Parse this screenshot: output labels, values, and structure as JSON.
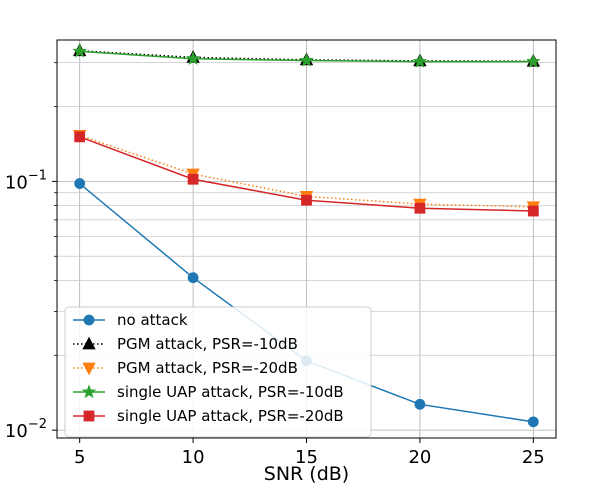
{
  "chart_data": {
    "type": "line",
    "title": "",
    "xlabel": "SNR (dB)",
    "ylabel": "",
    "x": [
      5,
      10,
      15,
      20,
      25
    ],
    "xlim": [
      4,
      26
    ],
    "ylim": [
      0.0093,
      0.37
    ],
    "yscale": "log",
    "x_ticks": [
      {
        "value": 5,
        "label": "5"
      },
      {
        "value": 10,
        "label": "10"
      },
      {
        "value": 15,
        "label": "15"
      },
      {
        "value": 20,
        "label": "20"
      },
      {
        "value": 25,
        "label": "25"
      }
    ],
    "y_ticks": [
      {
        "value": 0.01,
        "base": "10",
        "exp": "−2"
      },
      {
        "value": 0.1,
        "base": "10",
        "exp": "−1"
      }
    ],
    "grid": true,
    "legend_position": "lower-left",
    "series": [
      {
        "name": "no attack",
        "values": [
          0.098,
          0.041,
          0.019,
          0.0127,
          0.0108
        ],
        "color": "#1f77b4",
        "marker": "circle",
        "line": "solid"
      },
      {
        "name": "PGM attack, PSR=-10dB",
        "values": [
          0.335,
          0.315,
          0.308,
          0.305,
          0.304
        ],
        "color": "#000000",
        "marker": "triangle-up",
        "line": "dotted"
      },
      {
        "name": "PGM attack, PSR=-20dB",
        "values": [
          0.153,
          0.107,
          0.087,
          0.081,
          0.079
        ],
        "color": "#ff7f0e",
        "marker": "triangle-down",
        "line": "dotted"
      },
      {
        "name": "single UAP attack, PSR=-10dB",
        "values": [
          0.333,
          0.311,
          0.306,
          0.303,
          0.303
        ],
        "color": "#2ca02c",
        "marker": "star",
        "line": "solid"
      },
      {
        "name": "single UAP attack, PSR=-20dB",
        "values": [
          0.151,
          0.102,
          0.084,
          0.078,
          0.076
        ],
        "color": "#d62728",
        "marker": "square",
        "line": "solid"
      }
    ]
  }
}
